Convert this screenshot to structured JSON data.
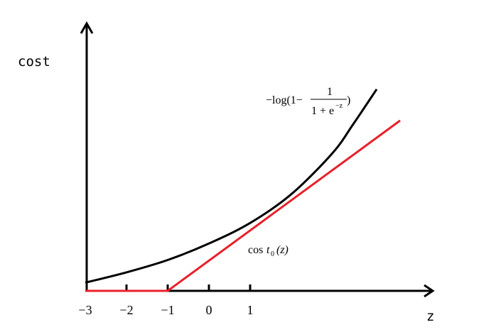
{
  "chart_data": {
    "type": "line",
    "ylabel": "cost",
    "xlabel": "z",
    "x_ticks": [
      "−3",
      "−2",
      "−1",
      "0",
      "1"
    ],
    "x_tick_values": [
      -3,
      -2,
      -1,
      0,
      1
    ],
    "grid": false,
    "series": [
      {
        "name": "−log(1−1/(1+e^−z))",
        "label_parts": {
          "prefix": "−log(1−",
          "numerator": "1",
          "denominator": "1 + e",
          "exponent": "−z",
          "suffix": ")"
        },
        "color": "#000000",
        "x": [
          -3,
          -2,
          -1,
          0,
          1,
          2,
          3,
          3.5,
          4.07
        ],
        "y": [
          0.2,
          0.45,
          0.75,
          1.15,
          1.65,
          2.35,
          3.35,
          4.05,
          4.9
        ]
      },
      {
        "name": "cost0(z)",
        "label_parts": {
          "base": "cos",
          "t": "t",
          "sub": "0",
          "arg": "(z)"
        },
        "color": "#e8202a",
        "x": [
          -3,
          -1,
          4.64
        ],
        "y": [
          0,
          0,
          4.14
        ]
      }
    ]
  }
}
